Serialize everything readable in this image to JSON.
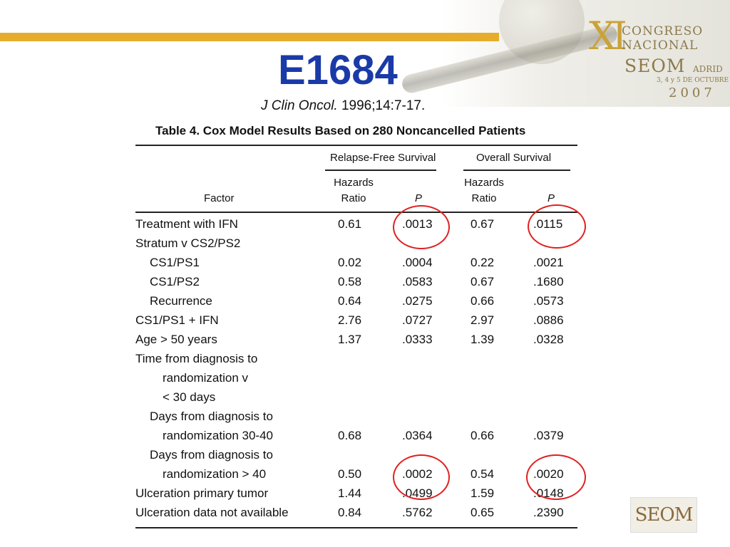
{
  "slide": {
    "title": "E1684",
    "citation_journal": "J Clin Oncol.",
    "citation_ref": " 1996;14:7-17."
  },
  "logo": {
    "numeral": "XI",
    "line1": "CONGRESO",
    "line2": "NACIONAL",
    "seom": "SEOM",
    "city": "ADRID",
    "dates": "3, 4 y 5 DE OCTUBRE",
    "year": "2007"
  },
  "small_logo": "SEOM",
  "colors": {
    "title": "#1a3aa8",
    "gold_bar": "#e6ad2c",
    "highlight_circle": "#e02020"
  },
  "table": {
    "caption": "Table 4.  Cox Model Results Based on 280 Noncancelled Patients",
    "group_headers": [
      "Relapse-Free Survival",
      "Overall Survival"
    ],
    "col_factor": "Factor",
    "col_hr_line1": "Hazards",
    "col_hr_line2": "Ratio",
    "col_p": "P",
    "rows": [
      {
        "factor": "Treatment with IFN",
        "hr_rfs": "0.61",
        "p_rfs": ".0013",
        "hr_os": "0.67",
        "p_os": ".0115"
      },
      {
        "factor": "Stratum v CS2/PS2",
        "hr_rfs": "",
        "p_rfs": "",
        "hr_os": "",
        "p_os": ""
      },
      {
        "factor": "CS1/PS1",
        "hr_rfs": "0.02",
        "p_rfs": ".0004",
        "hr_os": "0.22",
        "p_os": ".0021"
      },
      {
        "factor": "CS1/PS2",
        "hr_rfs": "0.58",
        "p_rfs": ".0583",
        "hr_os": "0.67",
        "p_os": ".1680"
      },
      {
        "factor": "Recurrence",
        "hr_rfs": "0.64",
        "p_rfs": ".0275",
        "hr_os": "0.66",
        "p_os": ".0573"
      },
      {
        "factor": "CS1/PS1 + IFN",
        "hr_rfs": "2.76",
        "p_rfs": ".0727",
        "hr_os": "2.97",
        "p_os": ".0886"
      },
      {
        "factor": "Age > 50 years",
        "hr_rfs": "1.37",
        "p_rfs": ".0333",
        "hr_os": "1.39",
        "p_os": ".0328"
      },
      {
        "factor": "Time from diagnosis to",
        "hr_rfs": "",
        "p_rfs": "",
        "hr_os": "",
        "p_os": ""
      },
      {
        "factor": "randomization v",
        "hr_rfs": "",
        "p_rfs": "",
        "hr_os": "",
        "p_os": ""
      },
      {
        "factor": "< 30 days",
        "hr_rfs": "",
        "p_rfs": "",
        "hr_os": "",
        "p_os": ""
      },
      {
        "factor": "Days from diagnosis to",
        "hr_rfs": "",
        "p_rfs": "",
        "hr_os": "",
        "p_os": ""
      },
      {
        "factor": "randomization 30-40",
        "hr_rfs": "0.68",
        "p_rfs": ".0364",
        "hr_os": "0.66",
        "p_os": ".0379"
      },
      {
        "factor": "Days from diagnosis to",
        "hr_rfs": "",
        "p_rfs": "",
        "hr_os": "",
        "p_os": ""
      },
      {
        "factor": "randomization > 40",
        "hr_rfs": "0.50",
        "p_rfs": ".0002",
        "hr_os": "0.54",
        "p_os": ".0020"
      },
      {
        "factor": "Ulceration primary tumor",
        "hr_rfs": "1.44",
        "p_rfs": ".0499",
        "hr_os": "1.59",
        "p_os": ".0148"
      },
      {
        "factor": "Ulceration data not available",
        "hr_rfs": "0.84",
        "p_rfs": ".5762",
        "hr_os": "0.65",
        "p_os": ".2390"
      }
    ]
  }
}
